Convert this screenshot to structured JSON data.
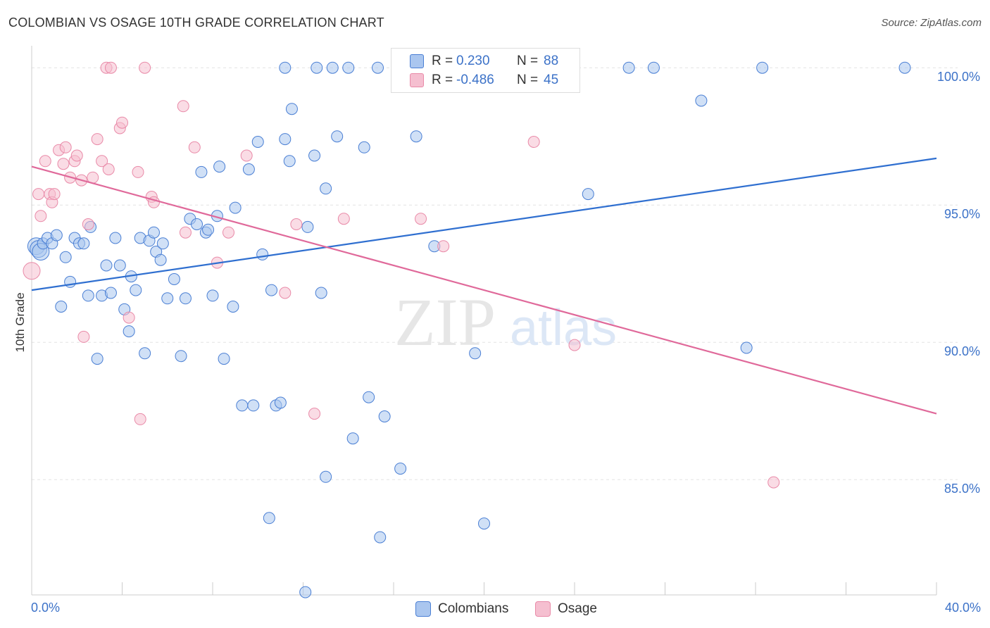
{
  "header": {
    "title": "COLOMBIAN VS OSAGE 10TH GRADE CORRELATION CHART",
    "source": "Source: ZipAtlas.com"
  },
  "watermark": {
    "zip": "ZIP",
    "atlas": "atlas"
  },
  "colors": {
    "blue": "#4a7fd4",
    "blue_fill": "#aac6ef",
    "blue_line": "#2f6fd0",
    "pink": "#e98aa8",
    "pink_fill": "#f5bfd0",
    "pink_line": "#e0699a",
    "axis_text_blue": "#3c72c8",
    "grid": "#e3e3e3"
  },
  "legend": {
    "rows": [
      {
        "r_label": "R =",
        "r_value": "0.230",
        "n_label": "N =",
        "n_value": "88",
        "color": "#aac6ef",
        "border": "#4a7fd4"
      },
      {
        "r_label": "R =",
        "r_value": "-0.486",
        "n_label": "N =",
        "n_value": "45",
        "color": "#f5bfd0",
        "border": "#e98aa8"
      }
    ]
  },
  "bottom_legend": {
    "items": [
      {
        "label": "Colombians",
        "color": "#aac6ef",
        "border": "#4a7fd4"
      },
      {
        "label": "Osage",
        "color": "#f5bfd0",
        "border": "#e98aa8"
      }
    ]
  },
  "chart_data": {
    "type": "scatter",
    "title": "COLOMBIAN VS OSAGE 10TH GRADE CORRELATION CHART",
    "xlabel": "",
    "ylabel": "10th Grade",
    "xlim": [
      0,
      40
    ],
    "ylim": [
      80.8,
      100.8
    ],
    "x_tick_labels": [
      "0.0%",
      "40.0%"
    ],
    "y_ticks": [
      85,
      90,
      95,
      100
    ],
    "y_tick_labels": [
      "85.0%",
      "90.0%",
      "95.0%",
      "100.0%"
    ],
    "grid": true,
    "legend_position": "top-center",
    "series": [
      {
        "name": "Colombians",
        "r": 0.23,
        "n": 88,
        "trend": {
          "x": [
            0,
            40
          ],
          "y": [
            91.9,
            96.7
          ]
        },
        "points": [
          [
            0.2,
            93.5
          ],
          [
            0.3,
            93.4
          ],
          [
            0.4,
            93.3
          ],
          [
            0.5,
            93.6
          ],
          [
            0.7,
            93.8
          ],
          [
            0.9,
            93.6
          ],
          [
            1.1,
            93.9
          ],
          [
            1.3,
            91.3
          ],
          [
            1.5,
            93.1
          ],
          [
            1.7,
            92.2
          ],
          [
            1.9,
            93.8
          ],
          [
            2.1,
            93.6
          ],
          [
            2.3,
            93.6
          ],
          [
            2.5,
            91.7
          ],
          [
            2.6,
            94.2
          ],
          [
            2.9,
            89.4
          ],
          [
            3.1,
            91.7
          ],
          [
            3.3,
            92.8
          ],
          [
            3.5,
            91.8
          ],
          [
            3.7,
            93.8
          ],
          [
            3.9,
            92.8
          ],
          [
            4.1,
            91.2
          ],
          [
            4.3,
            90.4
          ],
          [
            4.4,
            92.4
          ],
          [
            4.6,
            91.9
          ],
          [
            4.8,
            93.8
          ],
          [
            5.0,
            89.6
          ],
          [
            5.2,
            93.7
          ],
          [
            5.4,
            94.0
          ],
          [
            5.5,
            93.3
          ],
          [
            5.7,
            93.0
          ],
          [
            5.8,
            93.6
          ],
          [
            6.0,
            91.6
          ],
          [
            6.3,
            92.3
          ],
          [
            6.6,
            89.5
          ],
          [
            6.8,
            91.6
          ],
          [
            7.0,
            94.5
          ],
          [
            7.3,
            94.3
          ],
          [
            7.5,
            96.2
          ],
          [
            7.7,
            94.0
          ],
          [
            7.8,
            94.1
          ],
          [
            8.0,
            91.7
          ],
          [
            8.2,
            94.6
          ],
          [
            8.3,
            96.4
          ],
          [
            8.5,
            89.4
          ],
          [
            8.9,
            91.3
          ],
          [
            9.0,
            94.9
          ],
          [
            9.3,
            87.7
          ],
          [
            9.6,
            96.3
          ],
          [
            9.8,
            87.7
          ],
          [
            10.0,
            97.3
          ],
          [
            10.2,
            93.2
          ],
          [
            10.5,
            83.6
          ],
          [
            10.6,
            91.9
          ],
          [
            10.8,
            87.7
          ],
          [
            11.0,
            87.8
          ],
          [
            11.2,
            97.4
          ],
          [
            11.4,
            96.6
          ],
          [
            11.2,
            100.0
          ],
          [
            11.5,
            98.5
          ],
          [
            12.1,
            80.9
          ],
          [
            12.2,
            94.2
          ],
          [
            12.5,
            96.8
          ],
          [
            12.6,
            100.0
          ],
          [
            12.8,
            91.8
          ],
          [
            13.0,
            95.6
          ],
          [
            13.0,
            85.1
          ],
          [
            13.3,
            100.0
          ],
          [
            13.5,
            97.5
          ],
          [
            14.2,
            86.5
          ],
          [
            14.0,
            100.0
          ],
          [
            14.7,
            97.1
          ],
          [
            14.9,
            88.0
          ],
          [
            15.4,
            82.9
          ],
          [
            15.6,
            87.3
          ],
          [
            15.3,
            100.0
          ],
          [
            16.3,
            85.4
          ],
          [
            17.0,
            97.5
          ],
          [
            17.8,
            93.5
          ],
          [
            19.6,
            89.6
          ],
          [
            20.0,
            83.4
          ],
          [
            20.8,
            100.0
          ],
          [
            24.6,
            95.4
          ],
          [
            26.4,
            100.0
          ],
          [
            27.5,
            100.0
          ],
          [
            29.6,
            98.8
          ],
          [
            31.6,
            89.8
          ],
          [
            32.3,
            100.0
          ],
          [
            38.6,
            100.0
          ]
        ]
      },
      {
        "name": "Osage",
        "r": -0.486,
        "n": 45,
        "trend": {
          "x": [
            0,
            40
          ],
          "y": [
            96.4,
            87.4
          ]
        },
        "points": [
          [
            0.0,
            92.6
          ],
          [
            0.3,
            95.4
          ],
          [
            0.4,
            94.6
          ],
          [
            0.6,
            96.6
          ],
          [
            0.8,
            95.4
          ],
          [
            0.9,
            95.1
          ],
          [
            1.0,
            95.4
          ],
          [
            1.2,
            97.0
          ],
          [
            1.4,
            96.5
          ],
          [
            1.5,
            97.1
          ],
          [
            1.7,
            96.0
          ],
          [
            1.9,
            96.6
          ],
          [
            2.0,
            96.8
          ],
          [
            2.2,
            95.9
          ],
          [
            2.3,
            90.2
          ],
          [
            2.5,
            94.3
          ],
          [
            2.7,
            96.0
          ],
          [
            2.9,
            97.4
          ],
          [
            3.1,
            96.6
          ],
          [
            3.3,
            100.0
          ],
          [
            3.4,
            96.3
          ],
          [
            3.5,
            100.0
          ],
          [
            3.9,
            97.8
          ],
          [
            4.0,
            98.0
          ],
          [
            4.3,
            90.9
          ],
          [
            4.7,
            96.2
          ],
          [
            4.8,
            87.2
          ],
          [
            5.0,
            100.0
          ],
          [
            5.3,
            95.3
          ],
          [
            5.4,
            95.1
          ],
          [
            6.7,
            98.6
          ],
          [
            6.8,
            94.0
          ],
          [
            7.2,
            97.1
          ],
          [
            8.2,
            92.9
          ],
          [
            8.7,
            94.0
          ],
          [
            9.5,
            96.8
          ],
          [
            11.2,
            91.8
          ],
          [
            11.7,
            94.3
          ],
          [
            12.5,
            87.4
          ],
          [
            13.8,
            94.5
          ],
          [
            17.2,
            94.5
          ],
          [
            18.2,
            93.5
          ],
          [
            22.2,
            97.3
          ],
          [
            24.0,
            89.9
          ],
          [
            32.8,
            84.9
          ]
        ]
      }
    ]
  }
}
